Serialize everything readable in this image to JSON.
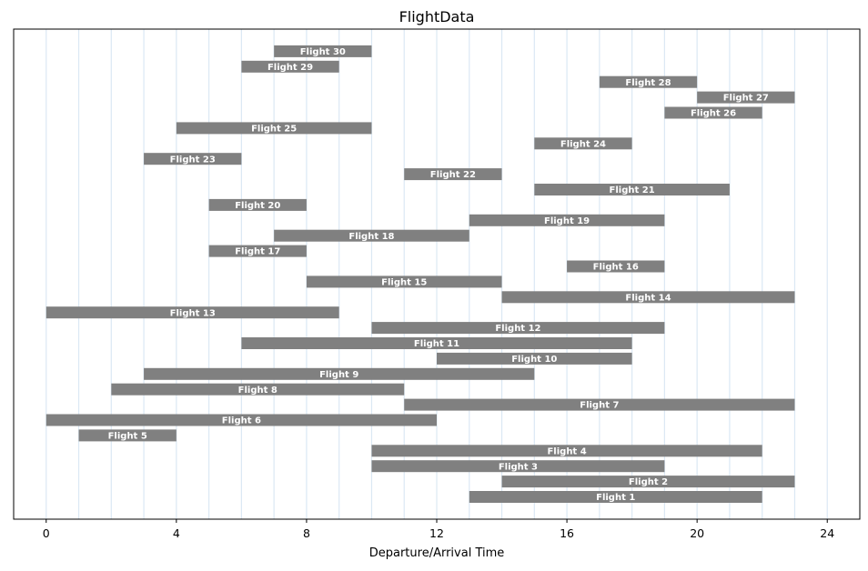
{
  "chart_data": {
    "type": "bar",
    "orientation": "horizontal-range",
    "title": "FlightData",
    "xlabel": "Departure/Arrival Time",
    "ylabel": "",
    "xlim": [
      -1,
      25
    ],
    "xticks": [
      0,
      4,
      8,
      12,
      16,
      20,
      24
    ],
    "xtick_labels": [
      "0",
      "4",
      "8",
      "12",
      "16",
      "20",
      "24"
    ],
    "grid": "vertical every 1 unit",
    "colors": {
      "bar": "#808080",
      "grid": "#dbe8f4",
      "label": "#ffffff"
    },
    "series": [
      {
        "label": "Flight 1",
        "start": 13,
        "end": 22
      },
      {
        "label": "Flight 2",
        "start": 14,
        "end": 23
      },
      {
        "label": "Flight 3",
        "start": 10,
        "end": 19
      },
      {
        "label": "Flight 4",
        "start": 10,
        "end": 22
      },
      {
        "label": "Flight 5",
        "start": 1,
        "end": 4
      },
      {
        "label": "Flight 6",
        "start": 0,
        "end": 12
      },
      {
        "label": "Flight 7",
        "start": 11,
        "end": 23
      },
      {
        "label": "Flight 8",
        "start": 2,
        "end": 11
      },
      {
        "label": "Flight 9",
        "start": 3,
        "end": 15
      },
      {
        "label": "Flight 10",
        "start": 12,
        "end": 18
      },
      {
        "label": "Flight 11",
        "start": 6,
        "end": 18
      },
      {
        "label": "Flight 12",
        "start": 10,
        "end": 19
      },
      {
        "label": "Flight 13",
        "start": 0,
        "end": 9
      },
      {
        "label": "Flight 14",
        "start": 14,
        "end": 23
      },
      {
        "label": "Flight 15",
        "start": 8,
        "end": 14
      },
      {
        "label": "Flight 16",
        "start": 16,
        "end": 19
      },
      {
        "label": "Flight 17",
        "start": 5,
        "end": 8
      },
      {
        "label": "Flight 18",
        "start": 7,
        "end": 13
      },
      {
        "label": "Flight 19",
        "start": 13,
        "end": 19
      },
      {
        "label": "Flight 20",
        "start": 5,
        "end": 8
      },
      {
        "label": "Flight 21",
        "start": 15,
        "end": 21
      },
      {
        "label": "Flight 22",
        "start": 11,
        "end": 14
      },
      {
        "label": "Flight 23",
        "start": 3,
        "end": 6
      },
      {
        "label": "Flight 24",
        "start": 15,
        "end": 18
      },
      {
        "label": "Flight 25",
        "start": 4,
        "end": 10
      },
      {
        "label": "Flight 26",
        "start": 19,
        "end": 22
      },
      {
        "label": "Flight 27",
        "start": 20,
        "end": 23
      },
      {
        "label": "Flight 28",
        "start": 17,
        "end": 20
      },
      {
        "label": "Flight 29",
        "start": 6,
        "end": 9
      },
      {
        "label": "Flight 30",
        "start": 7,
        "end": 10
      }
    ]
  }
}
